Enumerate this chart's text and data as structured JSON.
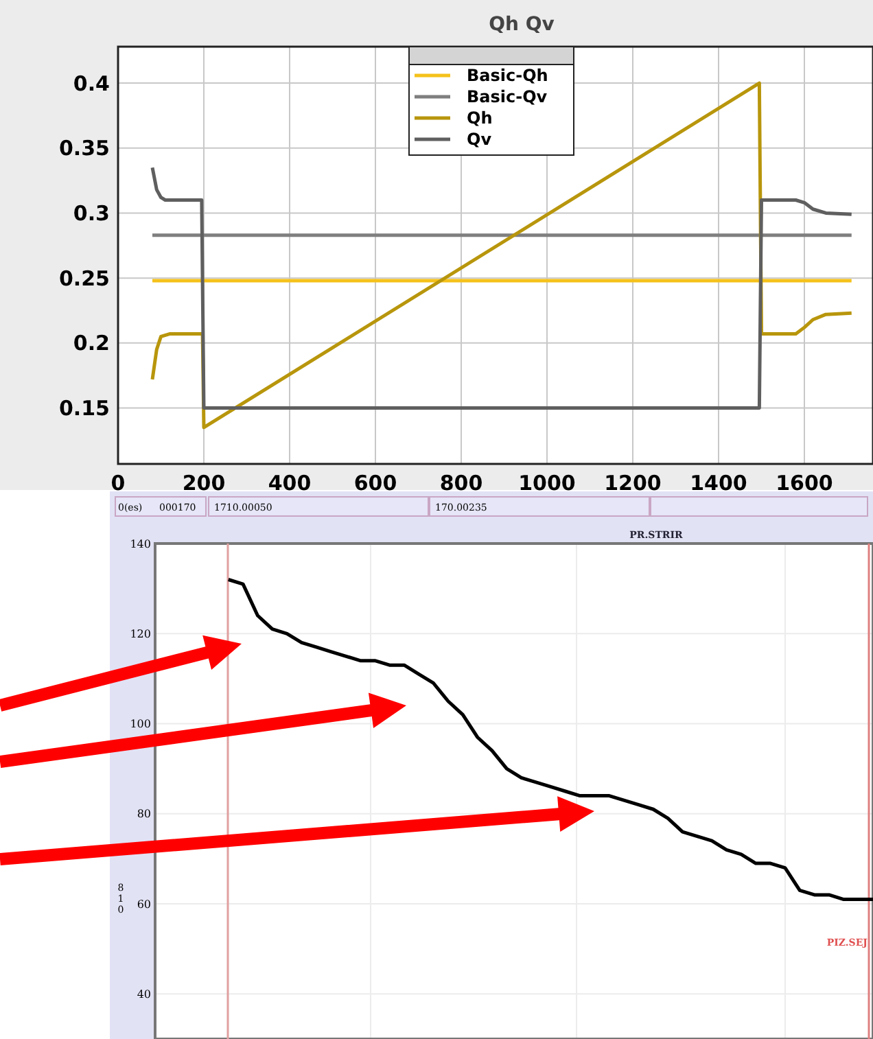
{
  "chart_data": [
    {
      "type": "line",
      "title": "Qh Qv",
      "xlim": [
        0,
        1760
      ],
      "xticks": [
        0,
        200,
        400,
        600,
        800,
        1000,
        1200,
        1400,
        1600
      ],
      "ylim": [
        0.107,
        0.428
      ],
      "yticks": [
        0.15,
        0.2,
        0.25,
        0.3,
        0.35,
        0.4
      ],
      "grid": true,
      "legend": "top",
      "series": [
        {
          "name": "Basic-Qh",
          "color": "#f5c21b",
          "x": [
            80,
            1710
          ],
          "values": [
            0.248,
            0.248
          ]
        },
        {
          "name": "Basic-Qv",
          "color": "#7f7f7f",
          "x": [
            80,
            1710
          ],
          "values": [
            0.283,
            0.283
          ]
        },
        {
          "name": "Qh",
          "color": "#b8960c",
          "x": [
            80,
            90,
            100,
            120,
            197,
            200,
            1495,
            1500,
            1580,
            1600,
            1620,
            1650,
            1710
          ],
          "values": [
            0.172,
            0.195,
            0.205,
            0.207,
            0.207,
            0.135,
            0.4,
            0.207,
            0.207,
            0.212,
            0.218,
            0.222,
            0.223
          ]
        },
        {
          "name": "Qv",
          "color": "#5f5f5f",
          "x": [
            80,
            90,
            100,
            110,
            195,
            200,
            1495,
            1500,
            1580,
            1600,
            1620,
            1650,
            1710
          ],
          "values": [
            0.335,
            0.318,
            0.312,
            0.31,
            0.31,
            0.15,
            0.15,
            0.31,
            0.31,
            0.308,
            0.303,
            0.3,
            0.299
          ]
        }
      ]
    },
    {
      "type": "line",
      "title": "PR.STRIR",
      "ylabel": "810",
      "ylim": [
        30,
        140
      ],
      "yticks": [
        40,
        60,
        80,
        100,
        120,
        140
      ],
      "grid": true,
      "tick_labels": "y",
      "annotations": [
        "0(es)",
        "000170",
        "1710.00050",
        "170.00235",
        "PIZ.SEJ"
      ],
      "categories": [
        null,
        null,
        null,
        null,
        null,
        null,
        null,
        null,
        null,
        null,
        null,
        null,
        null,
        null,
        null,
        null,
        null,
        null,
        null,
        null,
        null,
        null,
        null,
        null,
        null,
        null,
        null,
        null,
        null,
        null,
        null,
        null,
        null,
        null,
        null,
        null,
        null,
        null,
        null,
        null,
        null,
        null,
        null,
        null,
        null,
        null,
        null,
        null,
        null,
        null
      ],
      "series": [
        {
          "color": "#000000",
          "values": [
            null,
            null,
            null,
            null,
            null,
            132,
            131,
            124,
            121,
            120,
            118,
            117,
            116,
            115,
            114,
            114,
            113,
            113,
            111,
            109,
            105,
            102,
            97,
            94,
            90,
            88,
            87,
            86,
            85,
            84,
            84,
            84,
            83,
            82,
            81,
            79,
            76,
            75,
            74,
            72,
            71,
            69,
            69,
            68,
            63,
            62,
            62,
            61,
            61,
            61
          ]
        }
      ]
    }
  ]
}
